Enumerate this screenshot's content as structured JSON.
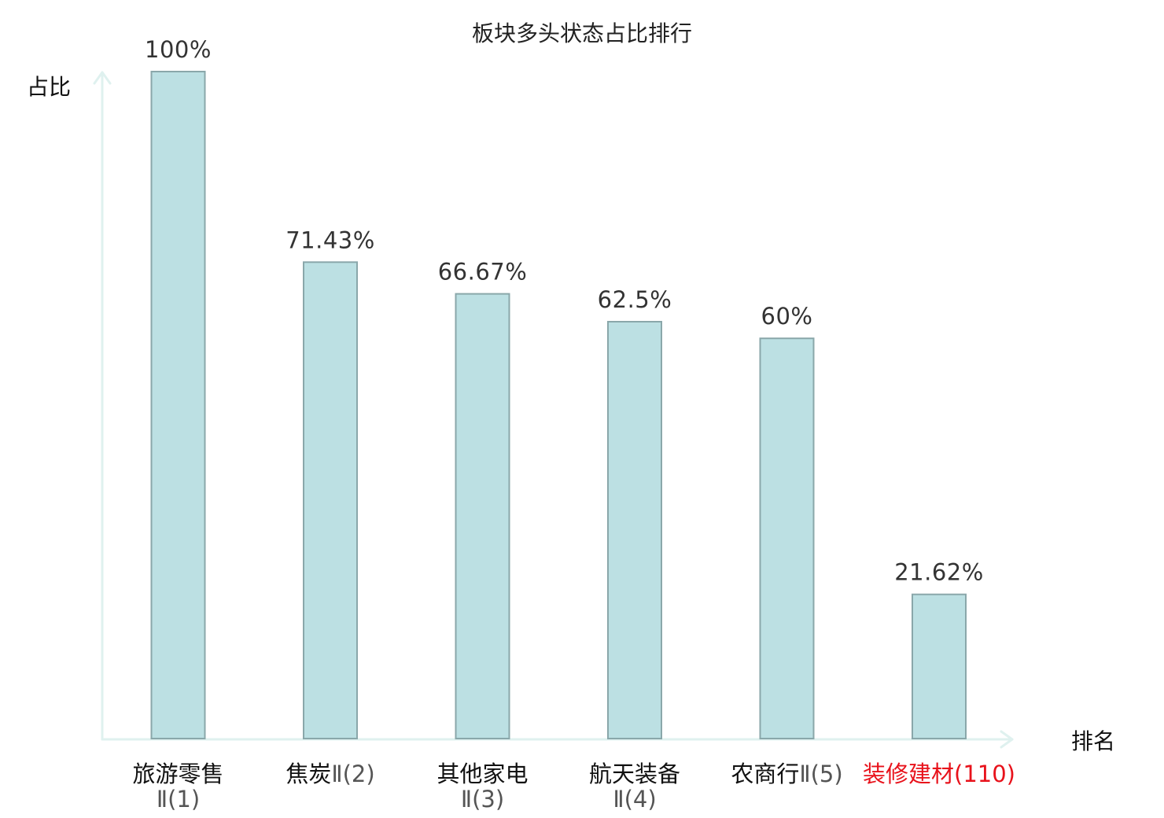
{
  "chart_data": {
    "type": "bar",
    "title": "板块多头状态占比排行",
    "ylabel": "占比",
    "xlabel": "排名",
    "ylim": [
      0,
      100
    ],
    "grid": false,
    "categories": [
      {
        "name": "旅游零售",
        "rank": "Ⅱ(1)",
        "highlight": false
      },
      {
        "name": "焦炭",
        "rank": "Ⅱ(2)",
        "highlight": false
      },
      {
        "name": "其他家电",
        "rank": "Ⅱ(3)",
        "highlight": false
      },
      {
        "name": "航天装备",
        "rank": "Ⅱ(4)",
        "highlight": false
      },
      {
        "name": "农商行",
        "rank": "Ⅱ(5)",
        "highlight": false
      },
      {
        "name": "装修建材",
        "rank": "(110)",
        "highlight": true
      }
    ],
    "values": [
      100,
      71.43,
      66.67,
      62.5,
      60,
      21.62
    ],
    "value_labels": [
      "100%",
      "71.43%",
      "66.67%",
      "62.5%",
      "60%",
      "21.62%"
    ],
    "colors": {
      "bar_fill": "#bce0e3",
      "bar_stroke": "#8aa7aa",
      "axis": "#dff1ef",
      "highlight_text": "#e8121b",
      "text": "#111111"
    }
  }
}
